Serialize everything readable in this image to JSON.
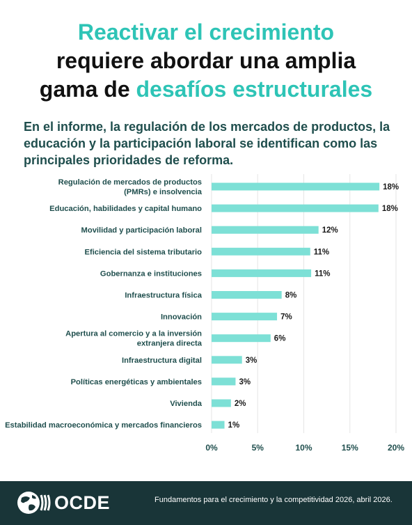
{
  "title": {
    "line1": "Reactivar el crecimiento",
    "line2": "requiere abordar una amplia",
    "line3_plain": "gama de ",
    "line3_accent": "desafíos estructurales"
  },
  "subtitle": "En el informe, la regulación de los mercados de productos, la educación y la participación laboral se identifican como las principales prioridades de reforma.",
  "colors": {
    "accent": "#2ec4b6",
    "bar": "#7de0d6",
    "text": "#1f4e4d",
    "footer_bg": "#193538"
  },
  "chart_data": {
    "type": "bar",
    "orientation": "horizontal",
    "categories": [
      [
        "Regulación de mercados de productos",
        "(PMRs) e insolvencia"
      ],
      [
        "Educación, habilidades y capital humano"
      ],
      [
        "Movilidad y participación laboral"
      ],
      [
        "Eficiencia del sistema tributario"
      ],
      [
        "Gobernanza e instituciones"
      ],
      [
        "Infraestructura física"
      ],
      [
        "Innovación"
      ],
      [
        "Apertura al comercio y a la inversión",
        "extranjera directa"
      ],
      [
        "Infraestructura digital"
      ],
      [
        "Políticas energéticas y ambientales"
      ],
      [
        "Vivienda"
      ],
      [
        "Estabilidad macroeconómica y mercados financieros"
      ]
    ],
    "values": [
      18.2,
      18.1,
      11.6,
      10.7,
      10.8,
      7.6,
      7.1,
      6.4,
      3.3,
      2.6,
      2.1,
      1.4
    ],
    "data_labels": [
      "18%",
      "18%",
      "12%",
      "11%",
      "11%",
      "8%",
      "7%",
      "6%",
      "3%",
      "3%",
      "2%",
      "1%"
    ],
    "xticks": [
      "0%",
      "5%",
      "10%",
      "15%",
      "20%"
    ],
    "xtick_values": [
      0,
      5,
      10,
      15,
      20
    ],
    "xlim": [
      0,
      20
    ],
    "grid": true
  },
  "footer": {
    "logo_text": "OCDE",
    "source": "Fundamentos para el crecimiento y la competitividad 2026, abril 2026."
  }
}
